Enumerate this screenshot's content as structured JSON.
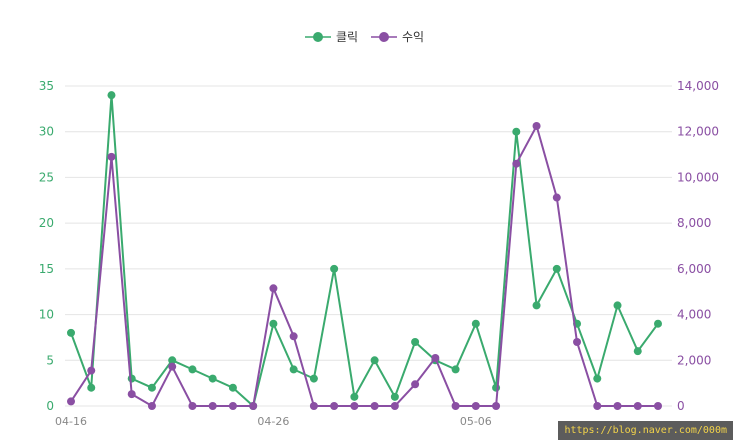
{
  "chart_data": {
    "type": "line",
    "x": [
      "04-16",
      "04-17",
      "04-18",
      "04-19",
      "04-20",
      "04-21",
      "04-22",
      "04-23",
      "04-24",
      "04-25",
      "04-26",
      "04-27",
      "04-28",
      "04-29",
      "04-30",
      "05-01",
      "05-02",
      "05-03",
      "05-04",
      "05-05",
      "05-06",
      "05-07",
      "05-08",
      "05-09",
      "05-10",
      "05-11",
      "05-12",
      "05-13",
      "05-14",
      "05-15"
    ],
    "x_tick_labels": [
      "04-16",
      "04-26",
      "05-06"
    ],
    "series": [
      {
        "name": "클릭",
        "axis": "left",
        "color": "#3aaa6e",
        "values": [
          8,
          2,
          34,
          3,
          2,
          5,
          4,
          3,
          2,
          0,
          9,
          4,
          3,
          15,
          1,
          5,
          1,
          7,
          5,
          4,
          9,
          2,
          30,
          11,
          15,
          9,
          3,
          11,
          6,
          9
        ]
      },
      {
        "name": "수익",
        "axis": "right",
        "color": "#8a4fa3",
        "values": [
          200,
          1550,
          10900,
          520,
          0,
          1720,
          0,
          0,
          0,
          0,
          5150,
          3050,
          0,
          0,
          0,
          0,
          0,
          950,
          2100,
          0,
          0,
          0,
          10600,
          12250,
          9120,
          2800,
          0,
          0,
          0,
          0
        ]
      }
    ],
    "y_left": {
      "ylim": [
        0,
        35
      ],
      "ticks": [
        "0",
        "5",
        "10",
        "15",
        "20",
        "25",
        "30",
        "35"
      ]
    },
    "y_right": {
      "ylim": [
        0,
        14000
      ],
      "ticks": [
        "0",
        "2,000",
        "4,000",
        "6,000",
        "8,000",
        "10,000",
        "12,000",
        "14,000"
      ]
    },
    "legend_position": "top-center",
    "grid": true
  },
  "watermark": "https://blog.naver.com/000m"
}
